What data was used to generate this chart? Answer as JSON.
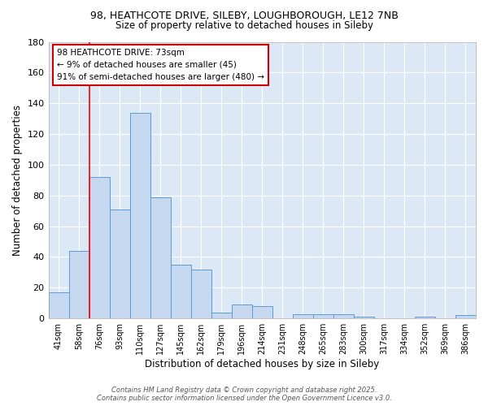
{
  "title_line1": "98, HEATHCOTE DRIVE, SILEBY, LOUGHBOROUGH, LE12 7NB",
  "title_line2": "Size of property relative to detached houses in Sileby",
  "xlabel": "Distribution of detached houses by size in Sileby",
  "ylabel": "Number of detached properties",
  "bar_labels": [
    "41sqm",
    "58sqm",
    "76sqm",
    "93sqm",
    "110sqm",
    "127sqm",
    "145sqm",
    "162sqm",
    "179sqm",
    "196sqm",
    "214sqm",
    "231sqm",
    "248sqm",
    "265sqm",
    "283sqm",
    "300sqm",
    "317sqm",
    "334sqm",
    "352sqm",
    "369sqm",
    "386sqm"
  ],
  "bar_values": [
    17,
    44,
    92,
    71,
    134,
    79,
    35,
    32,
    4,
    9,
    8,
    0,
    3,
    3,
    3,
    1,
    0,
    0,
    1,
    0,
    2
  ],
  "bar_color": "#c5d8f0",
  "bar_edge_color": "#5b9bd5",
  "fig_bg_color": "#ffffff",
  "axes_bg_color": "#dce8f5",
  "grid_color": "#ffffff",
  "red_line_x": 1.5,
  "annotation_text": "98 HEATHCOTE DRIVE: 73sqm\n← 9% of detached houses are smaller (45)\n91% of semi-detached houses are larger (480) →",
  "annotation_box_color": "#ffffff",
  "annotation_box_edge_color": "#cc0000",
  "ylim": [
    0,
    180
  ],
  "yticks": [
    0,
    20,
    40,
    60,
    80,
    100,
    120,
    140,
    160,
    180
  ],
  "footer_line1": "Contains HM Land Registry data © Crown copyright and database right 2025.",
  "footer_line2": "Contains public sector information licensed under the Open Government Licence v3.0."
}
